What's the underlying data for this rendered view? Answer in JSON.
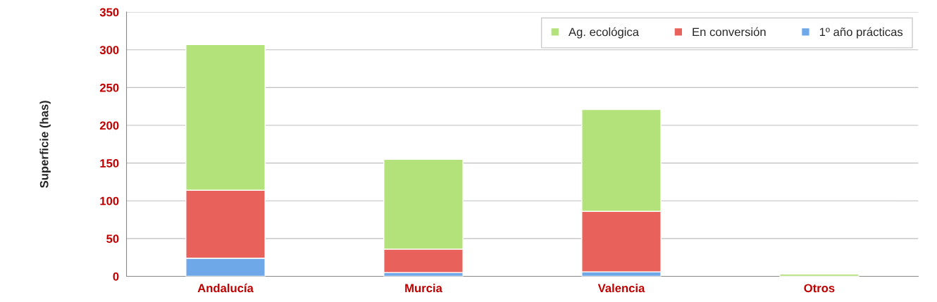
{
  "chart_data": {
    "type": "bar",
    "stacked": true,
    "ylabel": "Superficie (has)",
    "categories": [
      "Andalucía",
      "Murcia",
      "Valencia",
      "Otros"
    ],
    "series": [
      {
        "name": "1º año prácticas",
        "color": "#6fa8e8",
        "values": [
          24,
          5,
          6,
          0
        ]
      },
      {
        "name": "En conversión",
        "color": "#e8615a",
        "values": [
          90,
          31,
          80,
          0
        ]
      },
      {
        "name": "Ag. ecológica",
        "color": "#b4e27a",
        "values": [
          193,
          119,
          135,
          3
        ]
      }
    ],
    "ylim": [
      0,
      350
    ],
    "yticks": [
      0,
      50,
      100,
      150,
      200,
      250,
      300,
      350
    ],
    "grid": "y",
    "legend": "top right"
  }
}
